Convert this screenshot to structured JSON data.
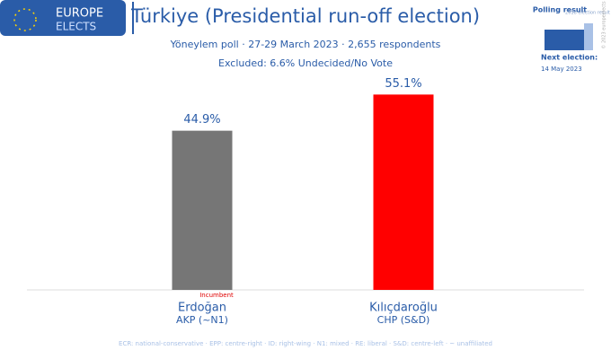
{
  "chart_data": {
    "type": "bar",
    "title": "Türkiye (Presidential run-off election)",
    "subtitle": "Yöneylem poll · 27-29 March 2023 · 2,655 respondents",
    "note": "Excluded: 6.6% Undecided/No Vote",
    "categories": [
      "Erdoğan",
      "Kılıçdaroğlu"
    ],
    "sublabels": [
      "AKP (~N1)",
      "CHP (S&D)"
    ],
    "values": [
      44.9,
      55.1
    ],
    "value_labels": [
      "44.9%",
      "55.1%"
    ],
    "colors": [
      "#767676",
      "#ff0000"
    ],
    "annotation": "Incumbent",
    "footer": "ECR: national-conservative · EPP: centre-right · ID: right-wing · N1: mixed · RE: liberal · S&D: centre-left · ~ unaffiliated"
  },
  "branding": {
    "logo_top": "EUROPE",
    "logo_bottom": "ELECTS",
    "legend_current": "Polling result",
    "legend_previous": "2018 election result",
    "next_election_label": "Next election:",
    "next_election_date": "14 May 2023",
    "copyright": "© 2023 europeelects"
  }
}
